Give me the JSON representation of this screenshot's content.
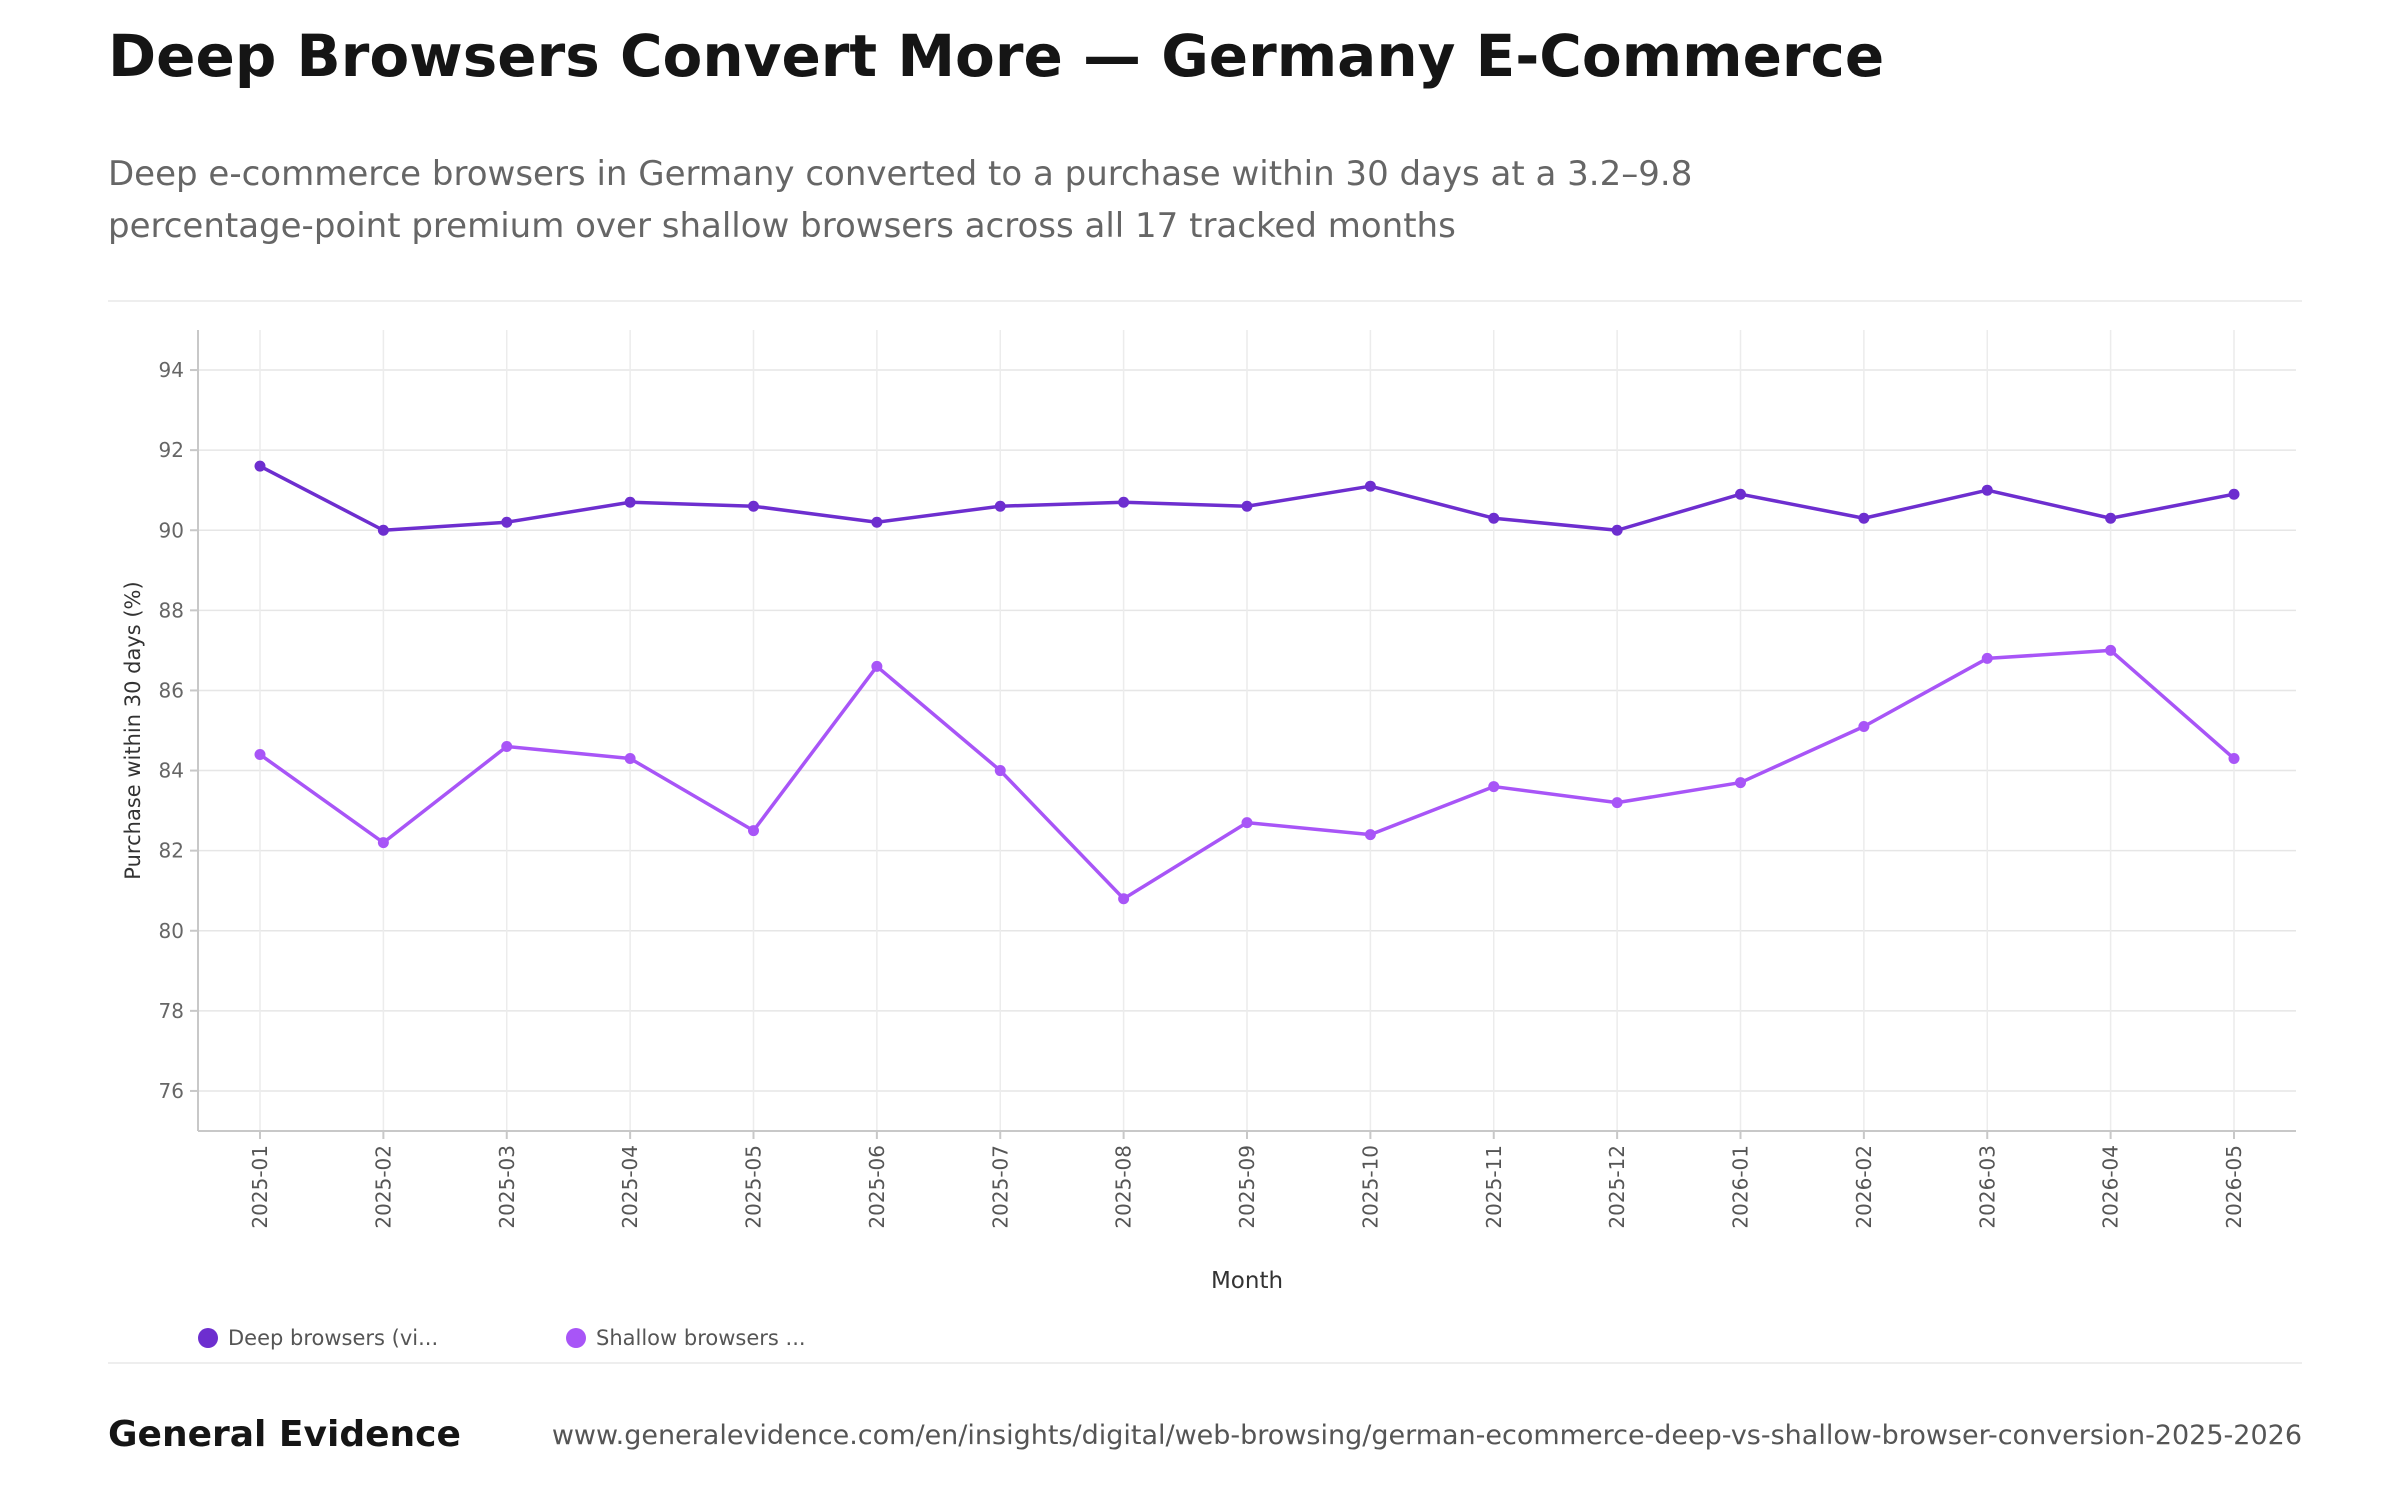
{
  "title": "Deep Browsers Convert More — Germany E-Commerce",
  "subtitle": "Deep e-commerce browsers in Germany converted to a purchase within 30 days at a 3.2–9.8 percentage-point premium over shallow browsers across all 17 tracked months",
  "brand": "General Evidence",
  "source_url": "www.generalevidence.com/en/insights/digital/web-browsing/german-ecommerce-deep-vs-shallow-browser-conversion-2025-2026",
  "chart_data": {
    "type": "line",
    "title": "",
    "xlabel": "Month",
    "ylabel": "Purchase within 30 days (%)",
    "ylim": [
      75,
      95
    ],
    "yticks": [
      76,
      78,
      80,
      82,
      84,
      86,
      88,
      90,
      92,
      94
    ],
    "grid": true,
    "legend_position": "bottom-left",
    "categories": [
      "2025-01",
      "2025-02",
      "2025-03",
      "2025-04",
      "2025-05",
      "2025-06",
      "2025-07",
      "2025-08",
      "2025-09",
      "2025-10",
      "2025-11",
      "2025-12",
      "2026-01",
      "2026-02",
      "2026-03",
      "2026-04",
      "2026-05"
    ],
    "series": [
      {
        "name": "Deep browsers (vi...",
        "color": "#6d2ecf",
        "values": [
          91.6,
          90.0,
          90.2,
          90.7,
          90.6,
          90.2,
          90.6,
          90.7,
          90.6,
          91.1,
          90.3,
          90.0,
          90.9,
          90.3,
          91.0,
          90.3,
          90.9
        ]
      },
      {
        "name": "Shallow browsers ...",
        "color": "#a855f7",
        "values": [
          84.4,
          82.2,
          84.6,
          84.3,
          82.5,
          86.6,
          84.0,
          80.8,
          82.7,
          82.4,
          83.6,
          83.2,
          83.7,
          85.1,
          86.8,
          87.0,
          84.3
        ]
      }
    ]
  }
}
